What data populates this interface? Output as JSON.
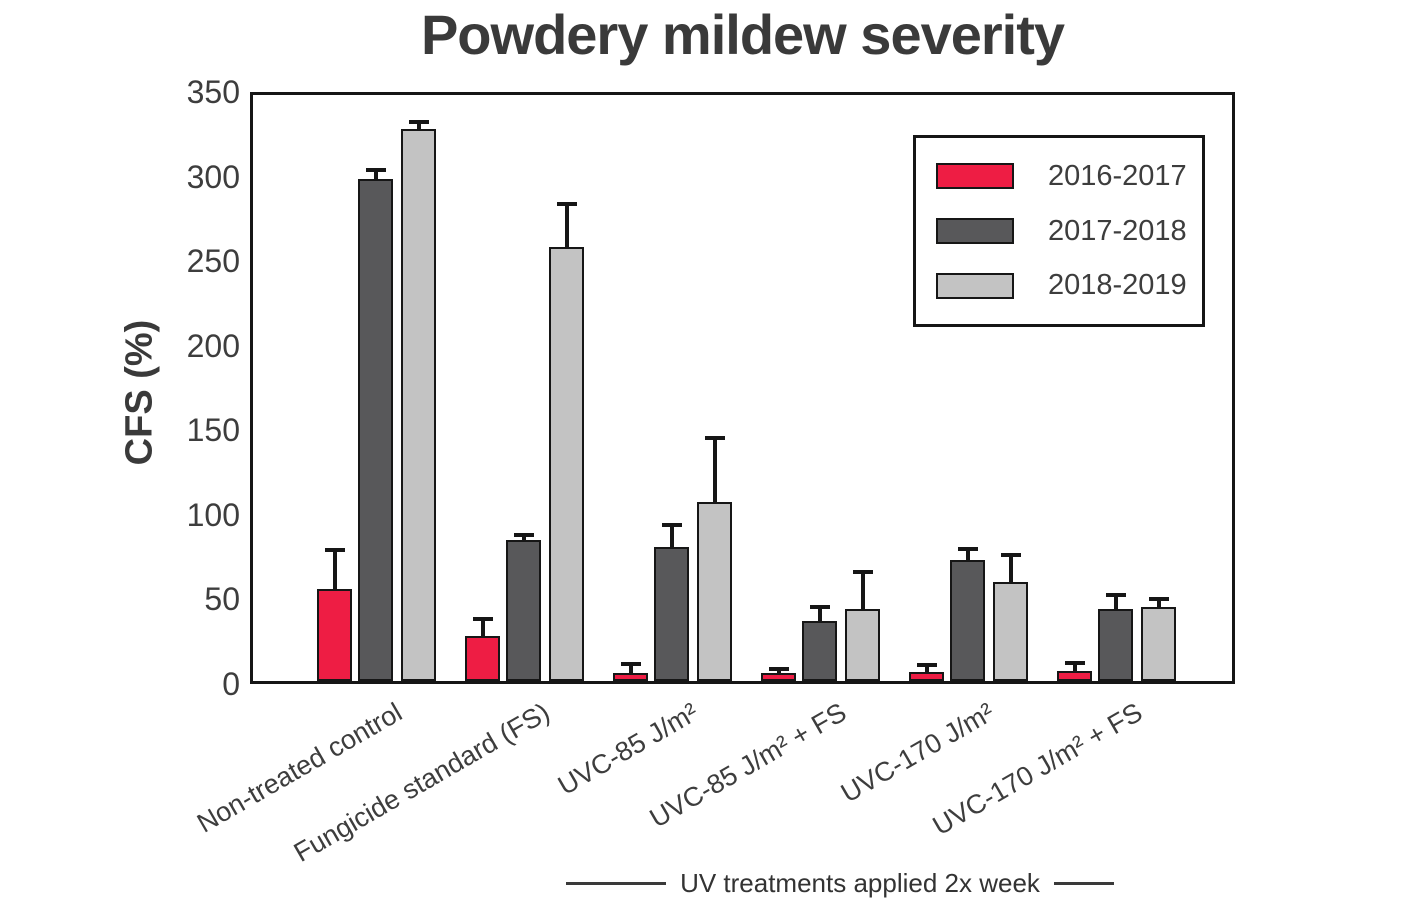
{
  "chart_data": {
    "type": "bar",
    "title": "Powdery mildew severity",
    "ylabel": "CFS (%)",
    "caption": "UV treatments applied 2x week",
    "ylim": [
      0,
      350
    ],
    "yticks": [
      0,
      50,
      100,
      150,
      200,
      250,
      300,
      350
    ],
    "grid": false,
    "legend_position": "top-right",
    "categories": [
      "Non-treated control",
      "Fungicide standard (FS)",
      "UVC-85 J/m²",
      "UVC-85 J/m² + FS",
      "UVC-170 J/m²",
      "UVC-170 J/m² + FS"
    ],
    "series": [
      {
        "name": "2016-2017",
        "color": "#EE1D44",
        "values": [
          55,
          27,
          5,
          4.5,
          5.5,
          6
        ],
        "errors_plus": [
          23,
          10,
          5,
          2.5,
          4,
          4.5
        ]
      },
      {
        "name": "2017-2018",
        "color": "#58585A",
        "values": [
          300,
          84,
          80,
          36,
          72,
          43
        ],
        "errors_plus": [
          5,
          3,
          13,
          8,
          7,
          8.5
        ]
      },
      {
        "name": "2018-2019",
        "color": "#C3C3C3",
        "values": [
          330,
          259,
          107,
          43,
          59,
          44
        ],
        "errors_plus": [
          4,
          26,
          38,
          22,
          16,
          5
        ]
      }
    ]
  },
  "colors": {
    "axis": "#161616",
    "text": "#3D3D3D"
  }
}
